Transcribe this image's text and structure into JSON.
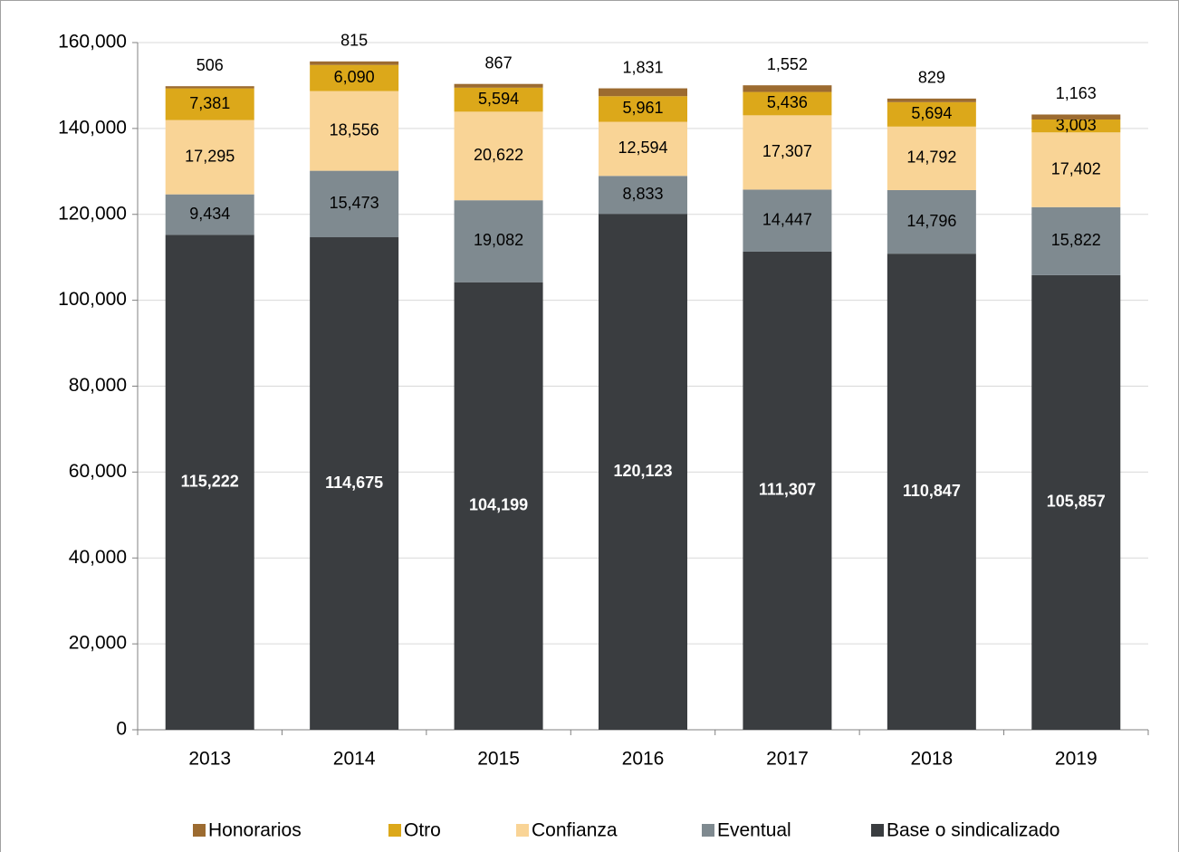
{
  "chart_data": {
    "type": "stacked_bar",
    "categories": [
      "2013",
      "2014",
      "2015",
      "2016",
      "2017",
      "2018",
      "2019"
    ],
    "series": [
      {
        "name": "Honorarios",
        "color": "#9c6b30",
        "values": [
          506,
          815,
          867,
          1831,
          1552,
          829,
          1163
        ],
        "value_labels": [
          "506",
          "815",
          "867",
          "1,831",
          "1,552",
          "829",
          "1,163"
        ]
      },
      {
        "name": "Otro",
        "color": "#dca81a",
        "values": [
          7381,
          6090,
          5594,
          5961,
          5436,
          5694,
          3003
        ],
        "value_labels": [
          "7,381",
          "6,090",
          "5,594",
          "5,961",
          "5,436",
          "5,694",
          "3,003"
        ]
      },
      {
        "name": "Confianza",
        "color": "#f9d496",
        "values": [
          17295,
          18556,
          20622,
          12594,
          17307,
          14792,
          17402
        ],
        "value_labels": [
          "17,295",
          "18,556",
          "20,622",
          "12,594",
          "17,307",
          "14,792",
          "17,402"
        ]
      },
      {
        "name": "Eventual",
        "color": "#7f8a90",
        "values": [
          9434,
          15473,
          19082,
          8833,
          14447,
          14796,
          15822
        ],
        "value_labels": [
          "9,434",
          "15,473",
          "19,082",
          "8,833",
          "14,447",
          "14,796",
          "15,822"
        ]
      },
      {
        "name": "Base o sindicalizado",
        "color": "#3a3d40",
        "values": [
          115222,
          114675,
          104199,
          120123,
          111307,
          110847,
          105857
        ],
        "value_labels": [
          "115,222",
          "114,675",
          "104,199",
          "120,123",
          "111,307",
          "110,847",
          "105,857"
        ]
      }
    ],
    "ylim": [
      0,
      160000
    ],
    "yticks": [
      0,
      {
        "value": 20000,
        "label": "20,000"
      },
      {
        "value": 40000,
        "label": "40,000"
      },
      {
        "value": 60000,
        "label": "60,000"
      },
      {
        "value": 80000,
        "label": "80,000"
      },
      {
        "value": 100000,
        "label": "100,000"
      },
      {
        "value": 120000,
        "label": "120,000"
      },
      {
        "value": 140000,
        "label": "140,000"
      },
      {
        "value": 160000,
        "label": "160,000"
      }
    ],
    "grid": true,
    "legend": "bottom"
  }
}
